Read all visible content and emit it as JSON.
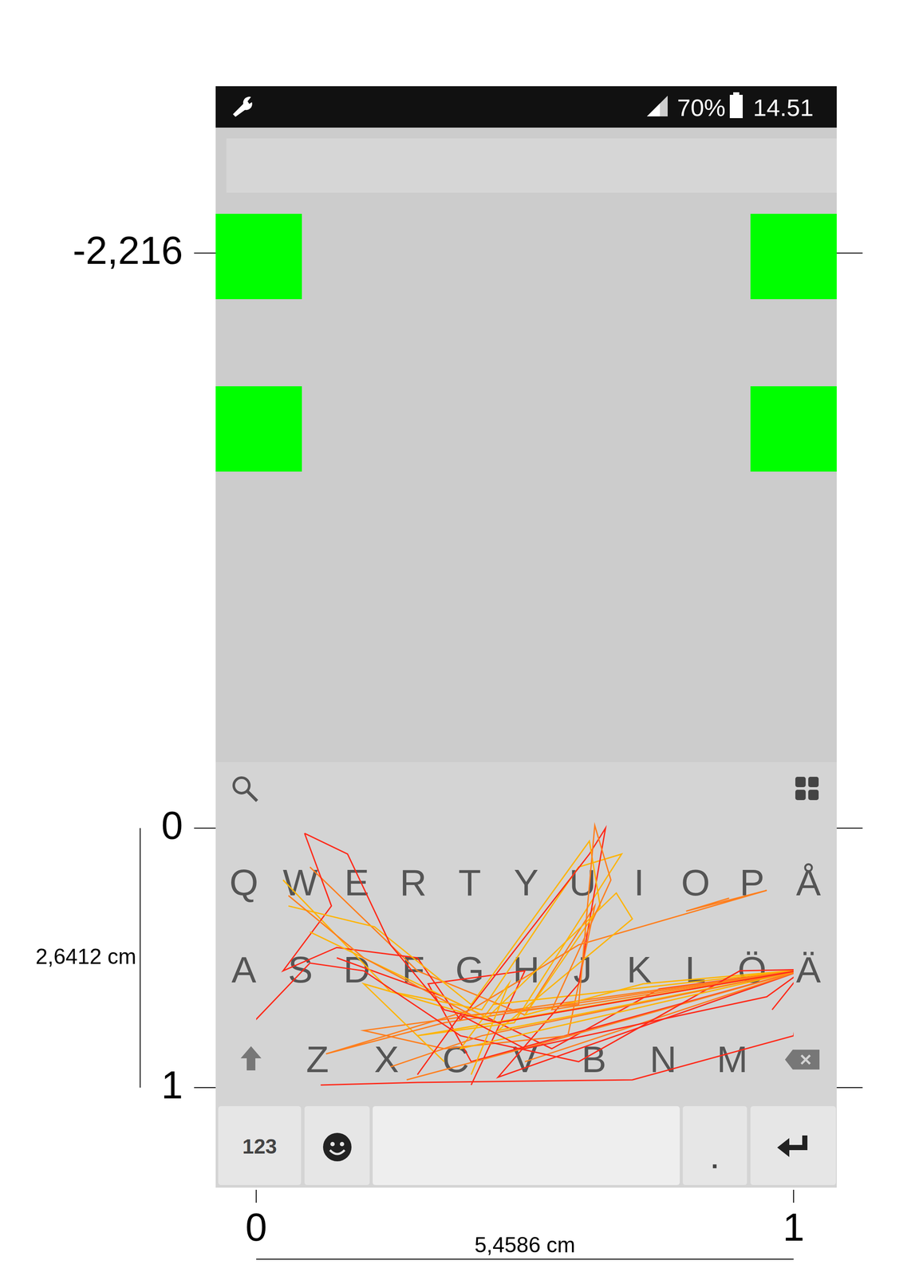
{
  "screen": {
    "status_bar": {
      "battery": "70%",
      "time": "14.51"
    },
    "keyboard": {
      "rows": [
        [
          "Q",
          "W",
          "E",
          "R",
          "T",
          "Y",
          "U",
          "I",
          "O",
          "P",
          "Å"
        ],
        [
          "A",
          "S",
          "D",
          "F",
          "G",
          "H",
          "J",
          "K",
          "L",
          "Ö",
          "Ä"
        ],
        [
          "Z",
          "X",
          "C",
          "V",
          "B",
          "N",
          "M"
        ]
      ],
      "number_key": "123",
      "period_key": "."
    }
  },
  "chart_data": {
    "type": "line",
    "xlim": [
      0,
      1
    ],
    "ylim": [
      -2.216,
      1
    ],
    "xticks": [
      0,
      1
    ],
    "yticks": [
      {
        "value": -2.216,
        "label": "-2,216"
      },
      0,
      1
    ],
    "annotations": {
      "width": "5,4586 cm",
      "height": "2,6412 cm"
    },
    "series": [
      {
        "color": "#ff2a1a",
        "x": [
          0.09,
          0.17,
          0.25,
          0.35,
          0.45,
          1.02,
          0.95,
          0.5,
          0.38,
          0.3
        ],
        "y": [
          0.02,
          0.1,
          0.45,
          0.7,
          0.75,
          0.545,
          0.65,
          0.85,
          0.72,
          0.95
        ]
      },
      {
        "color": "#ff7f1e",
        "x": [
          0.06,
          0.2,
          0.4,
          0.6,
          0.63,
          0.66,
          0.55,
          1.02,
          0.42,
          0.25
        ],
        "y": [
          0.26,
          0.5,
          0.72,
          0.68,
          -0.01,
          0.2,
          0.7,
          0.545,
          0.8,
          0.92
        ]
      },
      {
        "color": "#ffb400",
        "x": [
          0.1,
          0.3,
          0.43,
          0.67,
          0.7,
          0.45,
          1.02,
          0.38,
          0.47,
          0.4
        ],
        "y": [
          0.4,
          0.6,
          0.73,
          0.25,
          0.35,
          0.78,
          0.545,
          0.85,
          0.6,
          0.95
        ]
      },
      {
        "color": "#ff2a1a",
        "x": [
          -0.02,
          0.1,
          0.2,
          0.38,
          0.6,
          0.9,
          1.02,
          1.0,
          0.7,
          0.3,
          0.12
        ],
        "y": [
          0.78,
          0.52,
          0.55,
          0.8,
          0.9,
          0.55,
          0.545,
          0.8,
          0.97,
          0.98,
          0.99
        ]
      },
      {
        "color": "#ff7f1e",
        "x": [
          0.88,
          0.8,
          0.95,
          0.6,
          0.4,
          0.13,
          0.35,
          1.02,
          0.5
        ],
        "y": [
          0.27,
          0.32,
          0.24,
          0.45,
          0.7,
          0.87,
          0.75,
          0.545,
          0.9
        ]
      },
      {
        "color": "#ffb400",
        "x": [
          0.06,
          0.22,
          0.4,
          0.62,
          0.64,
          0.5,
          0.72,
          1.02,
          0.45,
          0.2,
          0.35
        ],
        "y": [
          0.3,
          0.38,
          0.68,
          0.05,
          0.3,
          0.72,
          0.6,
          0.545,
          0.75,
          0.6,
          0.9
        ]
      },
      {
        "color": "#ff2a1a",
        "x": [
          0.09,
          0.14,
          0.05,
          0.15,
          0.3,
          0.38,
          0.62,
          0.65,
          0.6,
          0.45,
          1.02,
          0.96
        ],
        "y": [
          0.02,
          0.3,
          0.55,
          0.46,
          0.5,
          0.74,
          0.1,
          0.0,
          0.6,
          0.96,
          0.545,
          0.7
        ]
      },
      {
        "color": "#ff7f1e",
        "x": [
          0.1,
          0.3,
          0.5,
          0.63,
          0.58,
          0.35,
          0.2,
          0.41,
          1.02,
          0.55,
          0.28
        ],
        "y": [
          0.15,
          0.55,
          0.72,
          0.3,
          0.8,
          0.85,
          0.78,
          0.72,
          0.545,
          0.82,
          0.97
        ]
      },
      {
        "color": "#ffb400",
        "x": [
          0.05,
          0.25,
          0.42,
          0.55,
          0.6,
          0.68,
          0.48,
          0.3,
          1.02,
          0.44
        ],
        "y": [
          0.2,
          0.63,
          0.7,
          0.3,
          0.15,
          0.1,
          0.75,
          0.8,
          0.545,
          0.68
        ]
      },
      {
        "color": "#ff2a1a",
        "x": [
          0.15,
          0.35,
          0.55,
          0.75,
          1.02,
          0.4,
          0.32,
          0.5,
          0.4
        ],
        "y": [
          0.5,
          0.65,
          0.85,
          0.62,
          0.545,
          0.9,
          0.6,
          0.55,
          0.99
        ]
      }
    ]
  }
}
